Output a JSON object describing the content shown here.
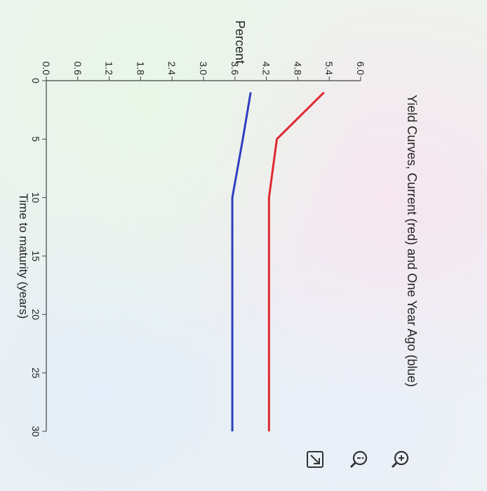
{
  "chart_data": {
    "type": "line",
    "title": "Yield Curves, Current (red) and One Year Ago (blue)",
    "xlabel": "Time to maturity (years)",
    "ylabel": "Percent",
    "xlim": [
      0,
      30
    ],
    "ylim": [
      0,
      6.0
    ],
    "x_ticks": [
      "0",
      "5",
      "10",
      "15",
      "20",
      "25",
      "30"
    ],
    "y_ticks": [
      "0.0",
      "0.6",
      "1.2",
      "1.8",
      "2.4",
      "3.0",
      "3.6",
      "4.2",
      "4.8",
      "5.4",
      "6.0"
    ],
    "grid": false,
    "series": [
      {
        "color": "#e0282e",
        "x": [
          1,
          5,
          10,
          30
        ],
        "y": [
          5.3,
          4.4,
          4.25,
          4.25
        ]
      },
      {
        "color": "#2f3fbf",
        "x": [
          1,
          5,
          10,
          30
        ],
        "y": [
          3.9,
          3.75,
          3.55,
          3.55
        ]
      }
    ]
  },
  "toolbar": {
    "icons": [
      "zoom-in-icon",
      "info-icon",
      "expand-icon"
    ]
  }
}
